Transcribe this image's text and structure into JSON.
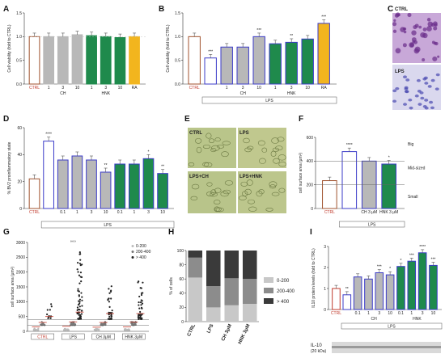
{
  "chart_data": [
    {
      "panel": "A",
      "type": "bar",
      "ylabel": "Cell viability (fold to CTRL)",
      "ylim": [
        0,
        1.5
      ],
      "yticks": [
        0,
        0.5,
        1.0,
        1.5
      ],
      "tick_labels": [
        "0.0",
        "0.5",
        "1.0",
        "1.5"
      ],
      "categories": [
        "CTRL",
        "1",
        "3",
        "10",
        "1",
        "3",
        "10",
        "RA"
      ],
      "values": [
        1.0,
        1.0,
        1.0,
        1.04,
        1.02,
        1.0,
        0.98,
        1.0
      ],
      "colors": [
        "#ffffff",
        "#b8b8b8",
        "#b8b8b8",
        "#b8b8b8",
        "#1f8a4c",
        "#1f8a4c",
        "#1f8a4c",
        "#f2b51e"
      ],
      "edges": [
        "#a0522d",
        "#b8b8b8",
        "#b8b8b8",
        "#b8b8b8",
        "#1f8a4c",
        "#1f8a4c",
        "#1f8a4c",
        "#f2b51e"
      ],
      "groups": [
        "CH",
        "HNK"
      ],
      "stars": [
        "",
        "",
        "",
        "",
        "",
        "",
        "",
        ""
      ]
    },
    {
      "panel": "B",
      "type": "bar",
      "ylabel": "Cell viability (fold to CTRL)",
      "ylim": [
        0,
        1.5
      ],
      "yticks": [
        0,
        0.5,
        1.0,
        1.5
      ],
      "tick_labels": [
        "0.0",
        "0.5",
        "1.0",
        "1.5"
      ],
      "categories": [
        "CTRL",
        "",
        "1",
        "3",
        "10",
        "1",
        "3",
        "10",
        "RA"
      ],
      "values": [
        1.0,
        0.55,
        0.78,
        0.78,
        1.0,
        0.85,
        0.88,
        0.95,
        1.28
      ],
      "colors": [
        "#ffffff",
        "#ffffff",
        "#b8b8b8",
        "#b8b8b8",
        "#b8b8b8",
        "#1f8a4c",
        "#1f8a4c",
        "#1f8a4c",
        "#f2b51e"
      ],
      "edges": [
        "#a0522d",
        "#3b3bc8",
        "#3b3bc8",
        "#3b3bc8",
        "#3b3bc8",
        "#3b3bc8",
        "#3b3bc8",
        "#3b3bc8",
        "#3b3bc8"
      ],
      "stars": [
        "",
        "***",
        "",
        "",
        "***",
        "",
        "**",
        "",
        "***"
      ],
      "star_colors": [
        "",
        "#333",
        "",
        "",
        "#333",
        "",
        "#333",
        "",
        "#a0105a"
      ],
      "groups": [
        "CH",
        "HNK"
      ],
      "bracket": "LPS"
    },
    {
      "panel": "D",
      "type": "bar",
      "ylabel": "% BV2 proinflammatory state",
      "ylim": [
        0,
        60
      ],
      "yticks": [
        0,
        20,
        40,
        60
      ],
      "tick_labels": [
        "0",
        "20",
        "40",
        "60"
      ],
      "categories": [
        "CTRL",
        "",
        "0.1",
        "1",
        "3",
        "10",
        "0.1",
        "1",
        "3",
        "10"
      ],
      "values": [
        22,
        50,
        36,
        39,
        36,
        27,
        33,
        33,
        37,
        26
      ],
      "colors": [
        "#ffffff",
        "#ffffff",
        "#b8b8b8",
        "#b8b8b8",
        "#b8b8b8",
        "#b8b8b8",
        "#1f8a4c",
        "#1f8a4c",
        "#1f8a4c",
        "#1f8a4c"
      ],
      "edges": [
        "#a0522d",
        "#3b3bc8",
        "#3b3bc8",
        "#3b3bc8",
        "#3b3bc8",
        "#3b3bc8",
        "#3b3bc8",
        "#3b3bc8",
        "#3b3bc8",
        "#3b3bc8"
      ],
      "stars": [
        "",
        "****",
        "",
        "",
        "",
        "**",
        "",
        "",
        "*",
        "**"
      ],
      "bracket": "LPS"
    },
    {
      "panel": "F",
      "type": "bar",
      "ylabel": "cell surface area (μm²)",
      "ylim": [
        0,
        600
      ],
      "yticks": [
        0,
        200,
        400,
        600
      ],
      "tick_labels": [
        "0",
        "200",
        "400",
        "600"
      ],
      "categories": [
        "CTRL",
        "",
        "CH 3 μM",
        "HNK 3 μM"
      ],
      "values": [
        235,
        480,
        400,
        375
      ],
      "colors": [
        "#ffffff",
        "#ffffff",
        "#b8b8b8",
        "#1f8a4c"
      ],
      "edges": [
        "#a0522d",
        "#3b3bc8",
        "#3b3bc8",
        "#3b3bc8"
      ],
      "stars": [
        "",
        "****",
        "",
        "*"
      ],
      "bracket": "LPS",
      "zones": [
        "Big",
        "Mid-sized",
        "Small"
      ],
      "thresholds": [
        200,
        400
      ]
    },
    {
      "panel": "G",
      "type": "scatter",
      "ylabel": "cell surface area (μm²)",
      "ylim": [
        0,
        3000
      ],
      "yticks": [
        0,
        500,
        1000,
        1500,
        2000,
        2500,
        3000
      ],
      "tick_labels": [
        "0",
        "500",
        "1000",
        "1500",
        "2000",
        "2500",
        "3000"
      ],
      "categories": [
        "CTRL",
        "LPS",
        "CH 3μM",
        "HNK 3μM"
      ],
      "legend": [
        "0-200",
        "200-400",
        "> 400"
      ],
      "medians": [
        [
          150,
          300,
          500
        ],
        [
          170,
          320,
          650
        ],
        [
          140,
          300,
          600
        ],
        [
          150,
          310,
          600
        ]
      ],
      "stars": [
        "",
        "°°°",
        "",
        ""
      ]
    },
    {
      "panel": "H",
      "type": "bar",
      "stacked": true,
      "ylabel": "% of cells",
      "ylim": [
        0,
        100
      ],
      "yticks": [
        0,
        20,
        40,
        60,
        80,
        100
      ],
      "tick_labels": [
        "0",
        "20",
        "40",
        "60",
        "80",
        "100"
      ],
      "categories": [
        "CTRL",
        "LPS",
        "CH 3μM",
        "HNK 3μM"
      ],
      "series": [
        {
          "name": "0-200",
          "values": [
            62,
            20,
            23,
            25
          ],
          "color": "#c8c8c8"
        },
        {
          "name": "200-400",
          "values": [
            28,
            30,
            38,
            35
          ],
          "color": "#8c8c8c"
        },
        {
          "name": "> 400",
          "values": [
            10,
            50,
            39,
            40
          ],
          "color": "#3a3a3a"
        }
      ]
    },
    {
      "panel": "I",
      "type": "bar",
      "ylabel": "IL10 protein levels (fold to CTRL)",
      "ylim": [
        0,
        3
      ],
      "yticks": [
        0,
        1,
        2,
        3
      ],
      "tick_labels": [
        "0",
        "1",
        "2",
        "3"
      ],
      "categories": [
        "CTRL",
        "",
        "0.1",
        "1",
        "3",
        "10",
        "0.1",
        "1",
        "3",
        "10"
      ],
      "values": [
        1.0,
        0.7,
        1.55,
        1.45,
        1.75,
        1.65,
        2.05,
        2.3,
        2.7,
        2.1
      ],
      "colors": [
        "#ffffff",
        "#ffffff",
        "#b8b8b8",
        "#b8b8b8",
        "#b8b8b8",
        "#b8b8b8",
        "#1f8a4c",
        "#1f8a4c",
        "#1f8a4c",
        "#1f8a4c"
      ],
      "edges": [
        "#c0392b",
        "#3b3bc8",
        "#3b3bc8",
        "#3b3bc8",
        "#3b3bc8",
        "#3b3bc8",
        "#3b3bc8",
        "#3b3bc8",
        "#3b3bc8",
        "#3b3bc8"
      ],
      "stars": [
        "",
        "**",
        "",
        "",
        "***",
        "*",
        "*",
        "***",
        "****",
        "***"
      ],
      "bracket": "LPS",
      "blot_label": "IL-10",
      "blot_sub": "(20 kDa)"
    }
  ],
  "images": {
    "C": {
      "labels": [
        "CTRL",
        "LPS"
      ]
    },
    "E": {
      "labels": [
        "CTRL",
        "LPS",
        "LPS+CH",
        "LPS+HNK"
      ]
    }
  },
  "panels": [
    "A",
    "B",
    "C",
    "D",
    "E",
    "F",
    "G",
    "H",
    "I"
  ],
  "labels": {
    "ctrl": "CTRL",
    "lps": "LPS",
    "ch": "CH",
    "hnk": "HNK",
    "ra": "RA"
  }
}
